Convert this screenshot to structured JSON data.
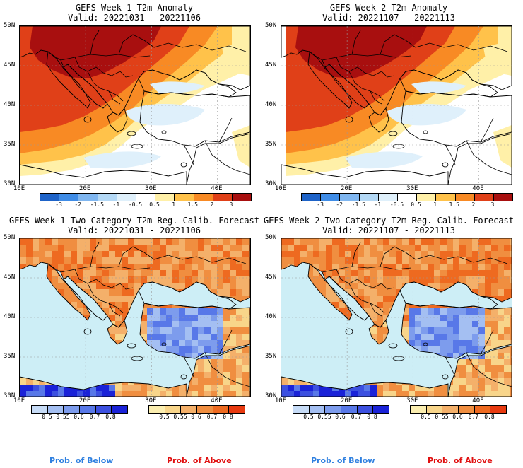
{
  "panels": [
    {
      "title": "GEFS Week-1 T2m Anomaly",
      "valid": "Valid: 20221031 - 20221106",
      "kind": "anomaly"
    },
    {
      "title": "GEFS Week-2 T2m Anomaly",
      "valid": "Valid: 20221107 - 20221113",
      "kind": "anomaly"
    },
    {
      "title": "GEFS Week-1 Two-Category T2m Reg. Calib. Forecast",
      "valid": "Valid: 20221031 - 20221106",
      "kind": "prob"
    },
    {
      "title": "GEFS Week-2 Two-Category T2m Reg. Calib. Forecast",
      "valid": "Valid: 20221107 - 20221113",
      "kind": "prob"
    }
  ],
  "lat_labels": [
    "50N",
    "45N",
    "40N",
    "35N",
    "30N"
  ],
  "lon_labels": [
    "10E",
    "20E",
    "30E",
    "40E"
  ],
  "anomaly_scale": {
    "ticks": [
      "-3",
      "-2",
      "-1.5",
      "-1",
      "-0.5",
      "0.5",
      "1",
      "1.5",
      "2",
      "3"
    ],
    "colors": [
      "#1e63c8",
      "#3f8ce6",
      "#7fb6f0",
      "#b3d8f5",
      "#dff0fb",
      "#ffffff",
      "#fff0a8",
      "#ffc24a",
      "#f88a24",
      "#e04018",
      "#a80f0f"
    ]
  },
  "below_scale": {
    "ticks": [
      "0.5",
      "0.55",
      "0.6",
      "0.7",
      "0.8"
    ],
    "colors": [
      "#c7dcf7",
      "#a4bff2",
      "#7d9ced",
      "#5878e8",
      "#3c50e0",
      "#1a22d8"
    ]
  },
  "above_scale": {
    "ticks": [
      "0.5",
      "0.55",
      "0.6",
      "0.7",
      "0.8"
    ],
    "colors": [
      "#fbeeb0",
      "#f8d58a",
      "#f4b06a",
      "#f08e40",
      "#ee6a20",
      "#e83a10"
    ]
  },
  "legend": {
    "below": "Prob. of Below",
    "above": "Prob. of Above"
  },
  "colors": {
    "below_text": "#2f80e0",
    "above_text": "#e01010",
    "sea": "#cdeef6",
    "warm": "#ee8030",
    "cold": "#5d7de5"
  }
}
